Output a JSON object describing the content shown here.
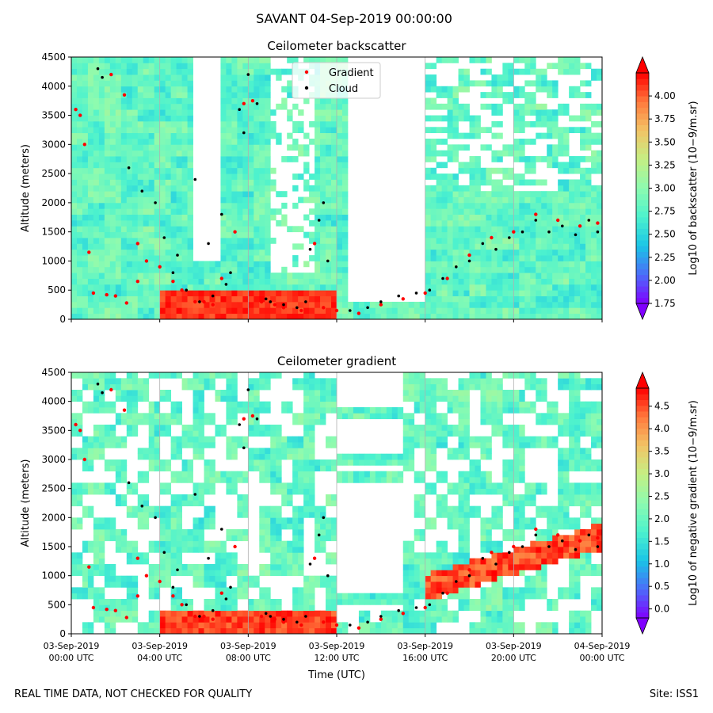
{
  "page": {
    "suptitle": "SAVANT 04-Sep-2019 00:00:00",
    "footer_left": "REAL TIME DATA, NOT CHECKED FOR QUALITY",
    "footer_right": "Site: ISS1"
  },
  "colors": {
    "gradient_marker": "#ff0000",
    "cloud_marker": "#000000",
    "colormap": [
      "#8000ff",
      "#4c6cf9",
      "#1ac4e6",
      "#4cf2ce",
      "#8cfbb0",
      "#c4ef84",
      "#f2c466",
      "#ff7a3d",
      "#ff0000"
    ]
  },
  "chart_data": [
    {
      "type": "heatmap",
      "title": "Ceilometer backscatter",
      "xlabel": "",
      "ylabel": "Altitude (meters)",
      "ylim": [
        0,
        4500
      ],
      "yticks": [
        "0",
        "500",
        "1000",
        "1500",
        "2000",
        "2500",
        "3000",
        "3500",
        "4000",
        "4500"
      ],
      "xlim_hours": [
        0,
        24
      ],
      "xticks_hours": [
        0,
        4,
        8,
        12,
        16,
        20,
        24
      ],
      "xtick_labels": [],
      "grid": "vertical",
      "legend": {
        "placement": "top-center",
        "entries": [
          "Gradient",
          "Cloud"
        ]
      },
      "colorbar": {
        "label": "Log10 of backscatter (10−9/m.sr)",
        "range": [
          1.75,
          4.25
        ],
        "ticks": [
          "1.75",
          "2.00",
          "2.25",
          "2.50",
          "2.75",
          "3.00",
          "3.25",
          "3.50",
          "3.75",
          "4.00"
        ],
        "extend": "both"
      },
      "series": [
        {
          "name": "Gradient",
          "marker": "dot",
          "points": [
            [
              0.2,
              3600
            ],
            [
              0.4,
              3500
            ],
            [
              0.6,
              3000
            ],
            [
              0.8,
              1150
            ],
            [
              1.8,
              4200
            ],
            [
              2.4,
              3850
            ],
            [
              3.0,
              1300
            ],
            [
              3.4,
              1000
            ],
            [
              4.0,
              900
            ],
            [
              4.6,
              650
            ],
            [
              5.0,
              500
            ],
            [
              5.6,
              300
            ],
            [
              6.0,
              300
            ],
            [
              6.4,
              250
            ],
            [
              6.8,
              700
            ],
            [
              7.4,
              1500
            ],
            [
              7.8,
              3700
            ],
            [
              8.2,
              3750
            ],
            [
              8.6,
              300
            ],
            [
              9.2,
              250
            ],
            [
              9.6,
              200
            ],
            [
              10.4,
              150
            ],
            [
              11.0,
              1300
            ],
            [
              11.4,
              200
            ],
            [
              12.0,
              150
            ],
            [
              13.0,
              100
            ],
            [
              14.0,
              250
            ],
            [
              15.0,
              350
            ],
            [
              16.0,
              450
            ],
            [
              17.0,
              700
            ],
            [
              18.0,
              1100
            ],
            [
              19.0,
              1400
            ],
            [
              20.0,
              1500
            ],
            [
              21.0,
              1800
            ],
            [
              22.0,
              1700
            ],
            [
              23.0,
              1600
            ],
            [
              23.8,
              1650
            ],
            [
              3.0,
              650
            ],
            [
              2.0,
              400
            ],
            [
              1.0,
              450
            ],
            [
              1.6,
              420
            ],
            [
              2.5,
              280
            ]
          ]
        },
        {
          "name": "Cloud",
          "marker": "dot",
          "points": [
            [
              1.2,
              4300
            ],
            [
              1.4,
              4150
            ],
            [
              2.6,
              2600
            ],
            [
              3.2,
              2200
            ],
            [
              3.8,
              2000
            ],
            [
              4.2,
              1400
            ],
            [
              4.6,
              800
            ],
            [
              5.2,
              500
            ],
            [
              5.8,
              300
            ],
            [
              6.4,
              400
            ],
            [
              6.8,
              1800
            ],
            [
              7.2,
              800
            ],
            [
              7.6,
              3600
            ],
            [
              7.8,
              3200
            ],
            [
              8.0,
              4200
            ],
            [
              8.4,
              3700
            ],
            [
              9.0,
              300
            ],
            [
              9.6,
              250
            ],
            [
              10.2,
              200
            ],
            [
              10.8,
              1200
            ],
            [
              11.2,
              1700
            ],
            [
              11.6,
              1000
            ],
            [
              12.6,
              150
            ],
            [
              13.4,
              200
            ],
            [
              14.0,
              300
            ],
            [
              14.8,
              400
            ],
            [
              15.6,
              450
            ],
            [
              16.2,
              500
            ],
            [
              16.8,
              700
            ],
            [
              17.4,
              900
            ],
            [
              18.0,
              1000
            ],
            [
              18.6,
              1300
            ],
            [
              19.2,
              1200
            ],
            [
              19.8,
              1400
            ],
            [
              20.4,
              1500
            ],
            [
              21.0,
              1700
            ],
            [
              21.6,
              1500
            ],
            [
              22.2,
              1600
            ],
            [
              22.8,
              1450
            ],
            [
              23.4,
              1700
            ],
            [
              23.8,
              1500
            ],
            [
              4.8,
              1100
            ],
            [
              5.6,
              2400
            ],
            [
              6.2,
              1300
            ],
            [
              7.0,
              600
            ],
            [
              8.8,
              350
            ],
            [
              10.6,
              300
            ],
            [
              11.4,
              2000
            ]
          ]
        }
      ]
    },
    {
      "type": "heatmap",
      "title": "Ceilometer gradient",
      "xlabel": "Time (UTC)",
      "ylabel": "Altitude (meters)",
      "ylim": [
        0,
        4500
      ],
      "yticks": [
        "0",
        "500",
        "1000",
        "1500",
        "2000",
        "2500",
        "3000",
        "3500",
        "4000",
        "4500"
      ],
      "xlim_hours": [
        0,
        24
      ],
      "xticks_hours": [
        0,
        4,
        8,
        12,
        16,
        20,
        24
      ],
      "xtick_labels": [
        [
          "03-Sep-2019",
          "00:00 UTC"
        ],
        [
          "03-Sep-2019",
          "04:00 UTC"
        ],
        [
          "03-Sep-2019",
          "08:00 UTC"
        ],
        [
          "03-Sep-2019",
          "12:00 UTC"
        ],
        [
          "03-Sep-2019",
          "16:00 UTC"
        ],
        [
          "03-Sep-2019",
          "20:00 UTC"
        ],
        [
          "04-Sep-2019",
          "00:00 UTC"
        ]
      ],
      "grid": "vertical",
      "colorbar": {
        "label": "Log10 of negative gradient (10−9/m.sr)",
        "range": [
          -0.2,
          4.9
        ],
        "ticks": [
          "0.0",
          "0.5",
          "1.0",
          "1.5",
          "2.0",
          "2.5",
          "3.0",
          "3.5",
          "4.0",
          "4.5"
        ],
        "extend": "both"
      },
      "series": [
        {
          "name": "Gradient",
          "marker": "dot",
          "points": [
            [
              0.2,
              3600
            ],
            [
              0.4,
              3500
            ],
            [
              0.6,
              3000
            ],
            [
              0.8,
              1150
            ],
            [
              1.8,
              4200
            ],
            [
              2.4,
              3850
            ],
            [
              3.0,
              1300
            ],
            [
              3.4,
              1000
            ],
            [
              4.0,
              900
            ],
            [
              4.6,
              650
            ],
            [
              5.0,
              500
            ],
            [
              5.6,
              300
            ],
            [
              6.0,
              300
            ],
            [
              6.4,
              250
            ],
            [
              6.8,
              700
            ],
            [
              7.4,
              1500
            ],
            [
              7.8,
              3700
            ],
            [
              8.2,
              3750
            ],
            [
              8.6,
              300
            ],
            [
              9.2,
              250
            ],
            [
              9.6,
              200
            ],
            [
              10.4,
              150
            ],
            [
              11.0,
              1300
            ],
            [
              11.4,
              200
            ],
            [
              12.0,
              150
            ],
            [
              13.0,
              100
            ],
            [
              14.0,
              250
            ],
            [
              15.0,
              350
            ],
            [
              16.0,
              450
            ],
            [
              17.0,
              700
            ],
            [
              18.0,
              1100
            ],
            [
              19.0,
              1400
            ],
            [
              20.0,
              1500
            ],
            [
              21.0,
              1800
            ],
            [
              22.0,
              1700
            ],
            [
              23.0,
              1600
            ],
            [
              23.8,
              1650
            ],
            [
              3.0,
              650
            ],
            [
              2.0,
              400
            ],
            [
              1.0,
              450
            ],
            [
              1.6,
              420
            ],
            [
              2.5,
              280
            ]
          ]
        },
        {
          "name": "Cloud",
          "marker": "dot",
          "points": [
            [
              1.2,
              4300
            ],
            [
              1.4,
              4150
            ],
            [
              2.6,
              2600
            ],
            [
              3.2,
              2200
            ],
            [
              3.8,
              2000
            ],
            [
              4.2,
              1400
            ],
            [
              4.6,
              800
            ],
            [
              5.2,
              500
            ],
            [
              5.8,
              300
            ],
            [
              6.4,
              400
            ],
            [
              6.8,
              1800
            ],
            [
              7.2,
              800
            ],
            [
              7.6,
              3600
            ],
            [
              7.8,
              3200
            ],
            [
              8.0,
              4200
            ],
            [
              8.4,
              3700
            ],
            [
              9.0,
              300
            ],
            [
              9.6,
              250
            ],
            [
              10.2,
              200
            ],
            [
              10.8,
              1200
            ],
            [
              11.2,
              1700
            ],
            [
              11.6,
              1000
            ],
            [
              12.6,
              150
            ],
            [
              13.4,
              200
            ],
            [
              14.0,
              300
            ],
            [
              14.8,
              400
            ],
            [
              15.6,
              450
            ],
            [
              16.2,
              500
            ],
            [
              16.8,
              700
            ],
            [
              17.4,
              900
            ],
            [
              18.0,
              1000
            ],
            [
              18.6,
              1300
            ],
            [
              19.2,
              1200
            ],
            [
              19.8,
              1400
            ],
            [
              20.4,
              1500
            ],
            [
              21.0,
              1700
            ],
            [
              21.6,
              1500
            ],
            [
              22.2,
              1600
            ],
            [
              22.8,
              1450
            ],
            [
              23.4,
              1700
            ],
            [
              23.8,
              1500
            ],
            [
              4.8,
              1100
            ],
            [
              5.6,
              2400
            ],
            [
              6.2,
              1300
            ],
            [
              7.0,
              600
            ],
            [
              8.8,
              350
            ],
            [
              10.6,
              300
            ],
            [
              11.4,
              2000
            ]
          ]
        }
      ]
    }
  ]
}
